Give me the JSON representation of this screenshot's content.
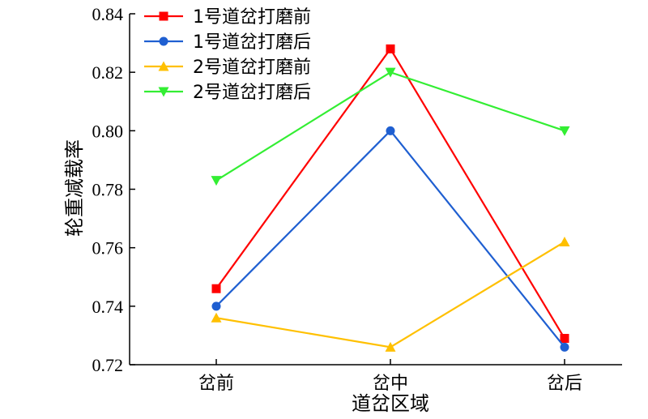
{
  "chart_data": {
    "type": "line",
    "title": "",
    "xlabel": "道岔区域",
    "ylabel": "轮重减载率",
    "categories": [
      "岔前",
      "岔中",
      "岔后"
    ],
    "ylim": [
      0.72,
      0.84
    ],
    "yticks": [
      0.72,
      0.74,
      0.76,
      0.78,
      0.8,
      0.82,
      0.84
    ],
    "ytick_labels": [
      "0.72",
      "0.74",
      "0.76",
      "0.78",
      "0.80",
      "0.82",
      "0.84"
    ],
    "grid": false,
    "legend_position": "top-left",
    "series": [
      {
        "name": "1号道岔打磨前",
        "values": [
          0.746,
          0.828,
          0.729
        ],
        "color": "#ff0000",
        "marker": "square"
      },
      {
        "name": "1号道岔打磨后",
        "values": [
          0.74,
          0.8,
          0.726
        ],
        "color": "#1f5fd1",
        "marker": "circle"
      },
      {
        "name": "2号道岔打磨前",
        "values": [
          0.736,
          0.726,
          0.762
        ],
        "color": "#ffc000",
        "marker": "triangle-up"
      },
      {
        "name": "2号道岔打磨后",
        "values": [
          0.783,
          0.82,
          0.8
        ],
        "color": "#33ee33",
        "marker": "triangle-down"
      }
    ]
  }
}
